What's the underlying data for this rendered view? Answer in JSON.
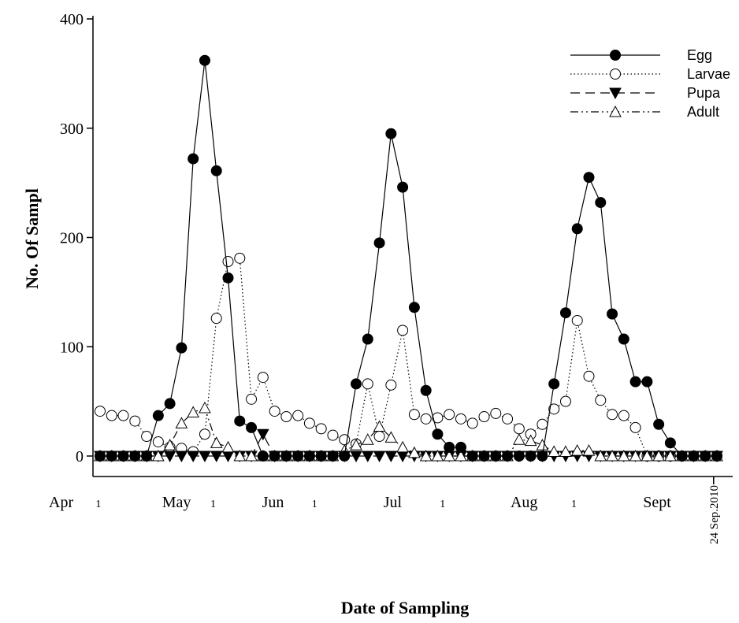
{
  "chart_data": {
    "type": "line",
    "xlabel": "Date of Sampling",
    "ylabel": "No. Of Sampl",
    "ylim": [
      0,
      400
    ],
    "yticks": [
      0,
      100,
      200,
      300,
      400
    ],
    "x_tick_labels": [
      {
        "label": "Apr",
        "x": 0,
        "small": false
      },
      {
        "label": "1",
        "x": 0.9,
        "small": true
      },
      {
        "label": "May",
        "x": 5.6,
        "small": false
      },
      {
        "label": "1",
        "x": 7.8,
        "small": true
      },
      {
        "label": "Jun",
        "x": 11.4,
        "small": false
      },
      {
        "label": "1",
        "x": 13.9,
        "small": true
      },
      {
        "label": "Jul",
        "x": 18.6,
        "small": false
      },
      {
        "label": "1",
        "x": 21.6,
        "small": true
      },
      {
        "label": "Aug",
        "x": 26.5,
        "small": false
      },
      {
        "label": "1",
        "x": 29.5,
        "small": true
      },
      {
        "label": "Sept",
        "x": 34.5,
        "small": false
      }
    ],
    "end_date_label": "24 Sep.2010",
    "end_date_x": 37.9,
    "x_axis_range": [
      0,
      38.5
    ],
    "legend_position": "top-right",
    "series": [
      {
        "name": "Egg",
        "marker": "filled-circle",
        "line": "solid",
        "x": [
          1,
          1.7,
          2.4,
          3.1,
          3.8,
          4.5,
          5.2,
          5.9,
          6.6,
          7.3,
          8,
          8.7,
          9.4,
          10.1,
          10.8,
          11.5,
          12.2,
          12.9,
          13.6,
          14.3,
          15,
          15.7,
          16.4,
          17.1,
          17.8,
          18.5,
          19.2,
          19.9,
          20.6,
          21.3,
          22,
          22.7,
          23.4,
          24.1,
          24.8,
          25.5,
          26.2,
          26.9,
          27.6,
          28.3,
          29,
          29.7,
          30.4,
          31.1,
          31.8,
          32.5,
          33.2,
          33.9,
          34.6,
          35.3,
          36,
          36.7,
          37.4,
          38.1
        ],
        "values": [
          0,
          0,
          0,
          0,
          0,
          37,
          48,
          99,
          272,
          362,
          261,
          163,
          32,
          26,
          0,
          0,
          0,
          0,
          0,
          0,
          0,
          0,
          66,
          107,
          195,
          295,
          246,
          136,
          60,
          20,
          8,
          8,
          0,
          0,
          0,
          0,
          0,
          0,
          0,
          66,
          131,
          208,
          255,
          232,
          130,
          107,
          68,
          68,
          29,
          12,
          0,
          0,
          0,
          0
        ]
      },
      {
        "name": "Larvae",
        "marker": "open-circle",
        "line": "dotted",
        "x": [
          1,
          1.7,
          2.4,
          3.1,
          3.8,
          4.5,
          5.2,
          5.9,
          6.6,
          7.3,
          8,
          8.7,
          9.4,
          10.1,
          10.8,
          11.5,
          12.2,
          12.9,
          13.6,
          14.3,
          15,
          15.7,
          16.4,
          17.1,
          17.8,
          18.5,
          19.2,
          19.9,
          20.6,
          21.3,
          22,
          22.7,
          23.4,
          24.1,
          24.8,
          25.5,
          26.2,
          26.9,
          27.6,
          28.3,
          29,
          29.7,
          30.4,
          31.1,
          31.8,
          32.5,
          33.2,
          33.9,
          34.6,
          35.3,
          36,
          36.7,
          37.4,
          38.1
        ],
        "values": [
          41,
          37,
          37,
          32,
          18,
          13,
          8,
          7,
          4,
          20,
          126,
          178,
          181,
          52,
          72,
          41,
          36,
          37,
          30,
          25,
          19,
          15,
          11,
          66,
          18,
          65,
          115,
          38,
          34,
          35,
          38,
          34,
          30,
          36,
          39,
          34,
          25,
          20,
          29,
          43,
          50,
          124,
          73,
          51,
          38,
          37,
          26,
          0,
          0,
          0,
          0,
          0,
          0,
          0
        ]
      },
      {
        "name": "Pupa",
        "marker": "filled-triangle-down",
        "line": "dashed",
        "x": [
          1,
          1.7,
          2.4,
          3.1,
          3.8,
          4.5,
          5.2,
          5.9,
          6.6,
          7.3,
          8,
          8.7,
          9.4,
          10.1,
          10.8,
          11.5,
          12.2,
          12.9,
          13.6,
          14.3,
          15,
          15.7,
          16.4,
          17.1,
          17.8,
          18.5,
          19.2,
          19.9,
          20.6,
          21.3,
          22,
          22.7,
          23.4,
          24.1,
          24.8,
          25.5,
          26.2,
          26.9,
          27.6,
          28.3,
          29,
          29.7,
          30.4,
          31.1,
          31.8,
          32.5,
          33.2,
          33.9,
          34.6,
          35.3,
          36,
          36.7,
          37.4,
          38.1
        ],
        "values": [
          0,
          0,
          0,
          0,
          0,
          0,
          0,
          0,
          0,
          0,
          0,
          0,
          0,
          0,
          20,
          0,
          0,
          0,
          0,
          0,
          0,
          0,
          0,
          0,
          0,
          0,
          0,
          0,
          0,
          0,
          0,
          0,
          0,
          0,
          0,
          0,
          0,
          0,
          0,
          0,
          0,
          0,
          0,
          0,
          0,
          0,
          0,
          0,
          0,
          0,
          0,
          0,
          0,
          0
        ]
      },
      {
        "name": "Adult",
        "marker": "open-triangle-up",
        "line": "dash-dot",
        "x": [
          1,
          1.7,
          2.4,
          3.1,
          3.8,
          4.5,
          5.2,
          5.9,
          6.6,
          7.3,
          8,
          8.7,
          9.4,
          10.1,
          10.8,
          11.5,
          12.2,
          12.9,
          13.6,
          14.3,
          15,
          15.7,
          16.4,
          17.1,
          17.8,
          18.5,
          19.2,
          19.9,
          20.6,
          21.3,
          22,
          22.7,
          23.4,
          24.1,
          24.8,
          25.5,
          26.2,
          26.9,
          27.6,
          28.3,
          29,
          29.7,
          30.4,
          31.1,
          31.8,
          32.5,
          33.2,
          33.9,
          34.6,
          35.3,
          36,
          36.7,
          37.4,
          38.1
        ],
        "values": [
          0,
          0,
          0,
          0,
          0,
          0,
          10,
          30,
          40,
          44,
          12,
          8,
          0,
          0,
          0,
          0,
          0,
          0,
          0,
          0,
          0,
          5,
          10,
          15,
          27,
          17,
          8,
          3,
          0,
          0,
          0,
          0,
          0,
          0,
          0,
          0,
          15,
          14,
          10,
          4,
          4,
          5,
          5,
          0,
          0,
          0,
          0,
          0,
          0,
          0,
          0,
          0,
          0,
          0
        ]
      }
    ]
  }
}
